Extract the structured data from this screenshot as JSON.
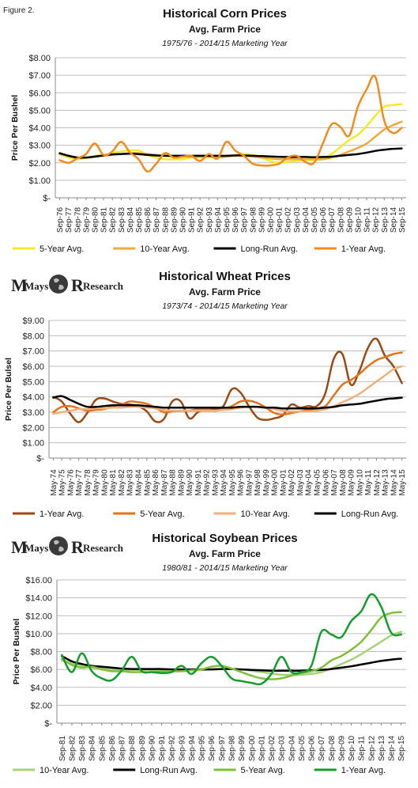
{
  "figure_label": "Figure 2.",
  "logo": {
    "first_word": "Mays",
    "second_word": "Research"
  },
  "chart_data": [
    {
      "type": "line",
      "title": "Historical Corn Prices",
      "subtitle": "Avg. Farm Price",
      "subtitle2": "1975/76 - 2014/15 Marketing Year",
      "ylabel": "Price Per Bushel",
      "xlabel": "",
      "ylim": [
        0,
        8
      ],
      "ytick_labels": [
        "$-",
        "$1.00",
        "$2.00",
        "$3.00",
        "$4.00",
        "$5.00",
        "$6.00",
        "$7.00",
        "$8.00"
      ],
      "ytick_values": [
        0,
        1,
        2,
        3,
        4,
        5,
        6,
        7,
        8
      ],
      "x": [
        "Sep-76",
        "Sep-77",
        "Sep-78",
        "Sep-79",
        "Sep-80",
        "Sep-81",
        "Sep-82",
        "Sep-83",
        "Sep-84",
        "Sep-85",
        "Sep-86",
        "Sep-87",
        "Sep-88",
        "Sep-89",
        "Sep-90",
        "Sep-91",
        "Sep-92",
        "Sep-93",
        "Sep-94",
        "Sep-95",
        "Sep-96",
        "Sep-97",
        "Sep-98",
        "Sep-99",
        "Sep-00",
        "Sep-01",
        "Sep-02",
        "Sep-03",
        "Sep-04",
        "Sep-05",
        "Sep-06",
        "Sep-07",
        "Sep-08",
        "Sep-09",
        "Sep-10",
        "Sep-11",
        "Sep-12",
        "Sep-13",
        "Sep-14",
        "Sep-15"
      ],
      "grid": true,
      "legend_position": "bottom",
      "series": [
        {
          "name": "5-Year Avg.",
          "color": "#f2ea2a",
          "width": 2.5,
          "values": [
            2.5,
            2.3,
            2.2,
            2.28,
            2.4,
            2.45,
            2.55,
            2.65,
            2.7,
            2.7,
            2.45,
            2.3,
            2.2,
            2.2,
            2.2,
            2.3,
            2.3,
            2.3,
            2.3,
            2.35,
            2.45,
            2.5,
            2.45,
            2.3,
            2.1,
            2.0,
            2.05,
            2.1,
            2.15,
            2.15,
            2.25,
            2.5,
            2.9,
            3.3,
            3.6,
            4.1,
            4.7,
            5.2,
            5.3,
            5.35
          ]
        },
        {
          "name": "10-Year Avg.",
          "color": "#f2a93c",
          "width": 2.5,
          "values": [
            2.5,
            2.4,
            2.3,
            2.3,
            2.35,
            2.4,
            2.45,
            2.5,
            2.55,
            2.55,
            2.5,
            2.45,
            2.4,
            2.35,
            2.35,
            2.35,
            2.35,
            2.35,
            2.3,
            2.35,
            2.4,
            2.4,
            2.35,
            2.3,
            2.25,
            2.2,
            2.2,
            2.2,
            2.2,
            2.2,
            2.2,
            2.3,
            2.45,
            2.65,
            2.85,
            3.1,
            3.5,
            3.9,
            4.15,
            4.35
          ]
        },
        {
          "name": "Long-Run Avg.",
          "color": "#000000",
          "width": 2.5,
          "values": [
            2.55,
            2.4,
            2.3,
            2.3,
            2.35,
            2.42,
            2.48,
            2.5,
            2.52,
            2.5,
            2.45,
            2.42,
            2.4,
            2.4,
            2.4,
            2.4,
            2.4,
            2.4,
            2.4,
            2.4,
            2.42,
            2.42,
            2.4,
            2.38,
            2.36,
            2.34,
            2.33,
            2.33,
            2.33,
            2.32,
            2.33,
            2.35,
            2.4,
            2.45,
            2.5,
            2.58,
            2.68,
            2.75,
            2.8,
            2.82
          ]
        },
        {
          "name": "1-Year Avg.",
          "color": "#f08c1e",
          "width": 2.5,
          "values": [
            2.15,
            2.0,
            2.25,
            2.5,
            3.1,
            2.45,
            2.65,
            3.2,
            2.6,
            2.2,
            1.5,
            1.95,
            2.55,
            2.3,
            2.35,
            2.4,
            2.1,
            2.5,
            2.25,
            3.2,
            2.7,
            2.4,
            1.95,
            1.85,
            1.85,
            1.95,
            2.3,
            2.4,
            2.05,
            2.0,
            3.1,
            4.2,
            4.05,
            3.55,
            5.2,
            6.2,
            6.9,
            4.4,
            3.7,
            4.0
          ]
        }
      ]
    },
    {
      "type": "line",
      "title": "Historical Wheat Prices",
      "subtitle": "Avg. Farm Price",
      "subtitle2": "1973/74 - 2014/15 Marketing Year",
      "ylabel": "Price Per Bulsel",
      "xlabel": "",
      "ylim": [
        0,
        9
      ],
      "ytick_labels": [
        "$-",
        "$1.00",
        "$2.00",
        "$3.00",
        "$4.00",
        "$5.00",
        "$6.00",
        "$7.00",
        "$8.00",
        "$9.00"
      ],
      "ytick_values": [
        0,
        1,
        2,
        3,
        4,
        5,
        6,
        7,
        8,
        9
      ],
      "x": [
        "May-74",
        "May-75",
        "May-76",
        "May-77",
        "May-78",
        "May-79",
        "May-80",
        "May-81",
        "May-82",
        "May-83",
        "May-84",
        "May-85",
        "May-86",
        "May-87",
        "May-88",
        "May-89",
        "May-90",
        "May-91",
        "May-92",
        "May-93",
        "May-94",
        "May-95",
        "May-96",
        "May-97",
        "May-98",
        "May-99",
        "May-00",
        "May-01",
        "May-02",
        "May-03",
        "May-04",
        "May-05",
        "May-06",
        "May-07",
        "May-08",
        "May-09",
        "May-10",
        "May-11",
        "May-12",
        "May-13",
        "May-14",
        "May-15"
      ],
      "grid": true,
      "legend_position": "bottom",
      "series": [
        {
          "name": "1-Year Avg.",
          "color": "#9a4a14",
          "width": 2.5,
          "values": [
            4.0,
            3.7,
            2.9,
            2.35,
            2.95,
            3.8,
            3.9,
            3.7,
            3.55,
            3.5,
            3.4,
            3.05,
            2.4,
            2.55,
            3.7,
            3.7,
            2.6,
            3.0,
            3.2,
            3.2,
            3.4,
            4.5,
            4.3,
            3.4,
            2.65,
            2.5,
            2.6,
            2.8,
            3.5,
            3.3,
            3.4,
            3.4,
            4.25,
            6.5,
            6.8,
            4.8,
            5.7,
            7.2,
            7.8,
            6.7,
            6.0,
            4.9
          ]
        },
        {
          "name": "5-Year Avg.",
          "color": "#e3721e",
          "width": 2.5,
          "values": [
            3.0,
            3.35,
            3.4,
            3.25,
            3.1,
            3.15,
            3.2,
            3.4,
            3.5,
            3.7,
            3.65,
            3.55,
            3.3,
            3.0,
            3.05,
            3.1,
            3.1,
            3.2,
            3.2,
            3.1,
            3.2,
            3.4,
            3.7,
            3.75,
            3.6,
            3.3,
            2.95,
            2.85,
            2.95,
            3.05,
            3.15,
            3.25,
            3.4,
            4.1,
            4.8,
            5.1,
            5.5,
            6.0,
            6.4,
            6.6,
            6.8,
            6.9
          ]
        },
        {
          "name": "10-Year Avg.",
          "color": "#f0b07a",
          "width": 2.5,
          "values": [
            2.9,
            3.0,
            3.1,
            3.2,
            3.2,
            3.25,
            3.25,
            3.3,
            3.3,
            3.35,
            3.35,
            3.3,
            3.25,
            3.15,
            3.1,
            3.1,
            3.1,
            3.1,
            3.1,
            3.1,
            3.15,
            3.2,
            3.3,
            3.35,
            3.35,
            3.3,
            3.2,
            3.1,
            3.05,
            3.05,
            3.05,
            3.1,
            3.2,
            3.4,
            3.65,
            3.9,
            4.2,
            4.6,
            5.0,
            5.4,
            5.8,
            6.0
          ]
        },
        {
          "name": "Long-Run Avg.",
          "color": "#000000",
          "width": 2.5,
          "values": [
            3.95,
            4.05,
            3.8,
            3.55,
            3.35,
            3.35,
            3.4,
            3.45,
            3.45,
            3.45,
            3.45,
            3.4,
            3.35,
            3.3,
            3.3,
            3.3,
            3.3,
            3.3,
            3.3,
            3.3,
            3.3,
            3.3,
            3.35,
            3.35,
            3.35,
            3.3,
            3.3,
            3.25,
            3.25,
            3.25,
            3.25,
            3.25,
            3.3,
            3.35,
            3.45,
            3.5,
            3.55,
            3.65,
            3.75,
            3.85,
            3.9,
            3.95
          ]
        }
      ]
    },
    {
      "type": "line",
      "title": "Historical Soybean Prices",
      "subtitle": "Avg. Farm Price",
      "subtitle2": "1980/81 - 2014/15 Marketing Year",
      "ylabel": "Price Per Bushel",
      "xlabel": "",
      "ylim": [
        0,
        16
      ],
      "ytick_labels": [
        "$-",
        "$2.00",
        "$4.00",
        "$6.00",
        "$8.00",
        "$10.00",
        "$12.00",
        "$14.00",
        "$16.00"
      ],
      "ytick_values": [
        0,
        2,
        4,
        6,
        8,
        10,
        12,
        14,
        16
      ],
      "x": [
        "Sep-81",
        "Sep-82",
        "Sep-83",
        "Sep-84",
        "Sep-85",
        "Sep-86",
        "Sep-87",
        "Sep-88",
        "Sep-89",
        "Sep-90",
        "Sep-91",
        "Sep-92",
        "Sep-93",
        "Sep-94",
        "Sep-95",
        "Sep-96",
        "Sep-97",
        "Sep-98",
        "Sep-99",
        "Sep-00",
        "Sep-01",
        "Sep-02",
        "Sep-03",
        "Sep-04",
        "Sep-05",
        "Sep-06",
        "Sep-07",
        "Sep-08",
        "Sep-09",
        "Sep-10",
        "Sep-11",
        "Sep-12",
        "Sep-13",
        "Sep-14",
        "Sep-15"
      ],
      "grid": true,
      "legend_position": "bottom",
      "series": [
        {
          "name": "10-Year Avg.",
          "color": "#a5d37a",
          "width": 2.5,
          "values": [
            7.0,
            6.7,
            6.4,
            6.2,
            6.1,
            6.0,
            5.95,
            5.95,
            5.95,
            5.95,
            5.9,
            5.9,
            5.9,
            5.9,
            5.95,
            6.0,
            6.05,
            6.05,
            6.0,
            5.85,
            5.7,
            5.55,
            5.4,
            5.4,
            5.4,
            5.5,
            5.7,
            6.1,
            6.6,
            7.1,
            7.7,
            8.4,
            9.1,
            9.8,
            10.2
          ]
        },
        {
          "name": "Long-Run Avg.",
          "color": "#000000",
          "width": 2.5,
          "values": [
            7.5,
            6.9,
            6.6,
            6.4,
            6.3,
            6.2,
            6.1,
            6.05,
            6.05,
            6.05,
            6.05,
            6.0,
            6.0,
            6.0,
            6.0,
            6.0,
            6.05,
            6.05,
            6.0,
            5.95,
            5.9,
            5.85,
            5.85,
            5.85,
            5.85,
            5.9,
            5.95,
            6.05,
            6.2,
            6.35,
            6.55,
            6.75,
            6.95,
            7.1,
            7.2
          ]
        },
        {
          "name": "5-Year Avg.",
          "color": "#7fbf3a",
          "width": 2.5,
          "values": [
            7.2,
            6.5,
            6.2,
            6.3,
            6.0,
            5.8,
            5.8,
            5.7,
            5.7,
            5.7,
            5.8,
            5.8,
            5.8,
            5.9,
            6.0,
            6.3,
            6.4,
            6.1,
            5.7,
            5.3,
            5.0,
            4.9,
            5.0,
            5.3,
            5.6,
            5.8,
            6.2,
            7.0,
            7.5,
            8.2,
            9.1,
            10.4,
            11.8,
            12.3,
            12.4
          ]
        },
        {
          "name": "1-Year Avg.",
          "color": "#169c2c",
          "width": 2.5,
          "values": [
            7.6,
            5.7,
            7.8,
            5.8,
            5.0,
            4.8,
            5.9,
            7.4,
            5.8,
            5.7,
            5.6,
            5.7,
            6.4,
            5.5,
            6.7,
            7.4,
            6.4,
            5.0,
            4.7,
            4.5,
            4.4,
            5.5,
            7.4,
            5.7,
            5.7,
            6.4,
            10.2,
            9.9,
            9.6,
            11.4,
            12.5,
            14.4,
            13.0,
            10.1,
            9.9
          ]
        }
      ]
    }
  ]
}
